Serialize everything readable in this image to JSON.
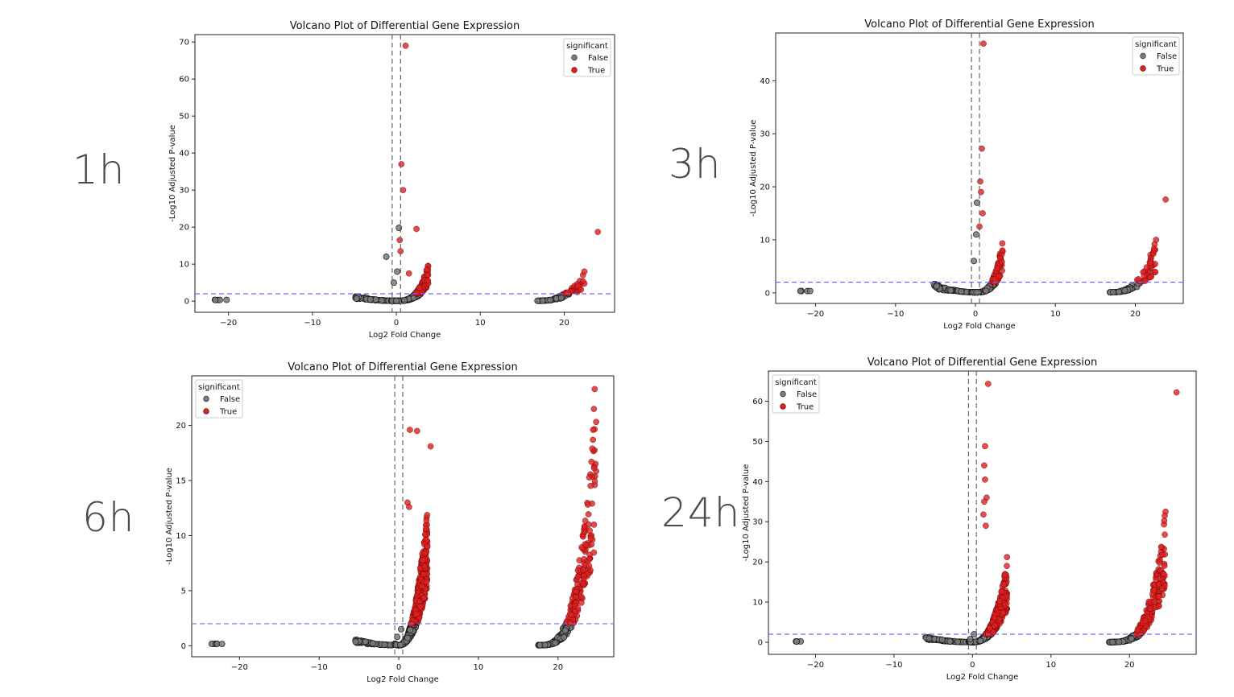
{
  "chart_data": [
    {
      "type": "scatter",
      "time_label": "1h",
      "title": "Volcano Plot of Differential Gene Expression",
      "xlabel": "Log2 Fold Change",
      "ylabel": "-Log10 Adjusted P-value",
      "xlim": [
        -24,
        26
      ],
      "ylim": [
        -3,
        72
      ],
      "xticks": [
        -20,
        -10,
        0,
        10,
        20
      ],
      "yticks": [
        0,
        10,
        20,
        30,
        40,
        50,
        60,
        70
      ],
      "fc_thresholds": [
        -0.5,
        0.5
      ],
      "p_threshold": 2,
      "legend": {
        "title": "significant",
        "entries": [
          "False",
          "True"
        ],
        "position": "top-right"
      },
      "seed": 11,
      "clusters": [
        {
          "x_range": [
            -21.8,
            -19.6
          ],
          "n": 5,
          "y_base": 0.3,
          "y_max": 0.9,
          "shape": 1
        },
        {
          "x_range": [
            -5,
            -0.6
          ],
          "n": 60,
          "y_base": 0.1,
          "y_max": 1.6,
          "shape": 2
        },
        {
          "x_range": [
            -0.6,
            3.8
          ],
          "n": 260,
          "y_base": 0.1,
          "y_max": 10,
          "shape": 3
        },
        {
          "x_range": [
            16.8,
            22.4
          ],
          "n": 80,
          "y_base": 0.1,
          "y_max": 8,
          "shape": 2.4
        }
      ],
      "false_points": [
        [
          -1.2,
          12
        ],
        [
          0.3,
          19.8
        ],
        [
          0.1,
          8
        ],
        [
          -0.3,
          5
        ]
      ],
      "true_points": [
        [
          1.1,
          69
        ],
        [
          0.6,
          37
        ],
        [
          0.8,
          30
        ],
        [
          2.4,
          19.5
        ],
        [
          0.4,
          16.5
        ],
        [
          0.5,
          13.5
        ],
        [
          24,
          18.7
        ],
        [
          22.4,
          8
        ],
        [
          1.5,
          7.5
        ]
      ]
    },
    {
      "type": "scatter",
      "time_label": "3h",
      "title": "Volcano Plot of Differential Gene Expression",
      "xlabel": "Log2 Fold Change",
      "ylabel": "-Log10 Adjusted P-value",
      "xlim": [
        -25,
        26
      ],
      "ylim": [
        -2,
        49
      ],
      "xticks": [
        -20,
        -10,
        0,
        10,
        20
      ],
      "yticks": [
        0,
        10,
        20,
        30,
        40
      ],
      "fc_thresholds": [
        -0.5,
        0.5
      ],
      "p_threshold": 2,
      "legend": {
        "title": "significant",
        "entries": [
          "False",
          "True"
        ],
        "position": "top-right"
      },
      "seed": 23,
      "clusters": [
        {
          "x_range": [
            -22.4,
            -20
          ],
          "n": 5,
          "y_base": 0.3,
          "y_max": 0.8,
          "shape": 1
        },
        {
          "x_range": [
            -5.2,
            -0.6
          ],
          "n": 70,
          "y_base": 0.1,
          "y_max": 1.8,
          "shape": 2
        },
        {
          "x_range": [
            -0.5,
            3.4
          ],
          "n": 260,
          "y_base": 0.1,
          "y_max": 10,
          "shape": 3
        },
        {
          "x_range": [
            16.8,
            22.6
          ],
          "n": 90,
          "y_base": 0.1,
          "y_max": 10,
          "shape": 2.6
        }
      ],
      "false_points": [
        [
          0.2,
          17
        ],
        [
          0.1,
          11
        ],
        [
          -0.2,
          6
        ]
      ],
      "true_points": [
        [
          1.0,
          47
        ],
        [
          0.8,
          27.2
        ],
        [
          0.6,
          21
        ],
        [
          0.7,
          19
        ],
        [
          0.9,
          15
        ],
        [
          0.5,
          12.5
        ],
        [
          23.8,
          17.6
        ],
        [
          22.6,
          10
        ],
        [
          3.3,
          5.8
        ]
      ]
    },
    {
      "type": "scatter",
      "time_label": "6h",
      "title": "Volcano Plot of Differential Gene Expression",
      "xlabel": "Log2 Fold Change",
      "ylabel": "-Log10 Adjusted P-value",
      "xlim": [
        -26,
        27
      ],
      "ylim": [
        -1,
        24.5
      ],
      "xticks": [
        -20,
        -10,
        0,
        10,
        20
      ],
      "yticks": [
        0,
        5,
        10,
        15,
        20
      ],
      "fc_thresholds": [
        -0.5,
        0.5
      ],
      "p_threshold": 2,
      "legend": {
        "title": "significant",
        "entries": [
          "False",
          "True"
        ],
        "position": "top-left"
      },
      "seed": 37,
      "clusters": [
        {
          "x_range": [
            -23.6,
            -21.2
          ],
          "n": 6,
          "y_base": 0.15,
          "y_max": 0.5,
          "shape": 1
        },
        {
          "x_range": [
            -5.5,
            -0.6
          ],
          "n": 80,
          "y_base": 0.05,
          "y_max": 0.6,
          "shape": 2
        },
        {
          "x_range": [
            -0.5,
            3.6
          ],
          "n": 700,
          "y_base": 0.05,
          "y_max": 13,
          "shape": 2.2
        },
        {
          "x_range": [
            17.5,
            24.8
          ],
          "n": 300,
          "y_base": 0.05,
          "y_max": 23.5,
          "shape": 3.2
        }
      ],
      "false_points": [
        [
          0.3,
          1.5
        ],
        [
          -0.2,
          0.8
        ]
      ],
      "true_points": [
        [
          1.4,
          19.6
        ],
        [
          2.3,
          19.5
        ],
        [
          4.0,
          18.1
        ],
        [
          1.1,
          13
        ],
        [
          1.3,
          12.6
        ],
        [
          24.6,
          23.3
        ],
        [
          24.5,
          21.5
        ],
        [
          24.4,
          19.6
        ],
        [
          24.3,
          17.9
        ],
        [
          24.2,
          16.7
        ],
        [
          3.6,
          9
        ]
      ]
    },
    {
      "type": "scatter",
      "time_label": "24h",
      "title": "Volcano Plot of Differential Gene Expression",
      "xlabel": "Log2 Fold Change",
      "ylabel": "-Log10 Adjusted P-value",
      "xlim": [
        -26,
        28.5
      ],
      "ylim": [
        -3,
        67.5
      ],
      "xticks": [
        -20,
        -10,
        0,
        10,
        20
      ],
      "yticks": [
        0,
        10,
        20,
        30,
        40,
        50,
        60
      ],
      "fc_thresholds": [
        -0.5,
        0.5
      ],
      "p_threshold": 2,
      "legend": {
        "title": "significant",
        "entries": [
          "False",
          "True"
        ],
        "position": "top-left"
      },
      "seed": 53,
      "clusters": [
        {
          "x_range": [
            -22.6,
            -21.6
          ],
          "n": 4,
          "y_base": 0.2,
          "y_max": 0.5,
          "shape": 1
        },
        {
          "x_range": [
            -6,
            -0.6
          ],
          "n": 80,
          "y_base": 0.05,
          "y_max": 1.5,
          "shape": 2
        },
        {
          "x_range": [
            -0.5,
            4.4
          ],
          "n": 650,
          "y_base": 0.05,
          "y_max": 20,
          "shape": 2.4
        },
        {
          "x_range": [
            17.4,
            24.6
          ],
          "n": 300,
          "y_base": 0.05,
          "y_max": 33,
          "shape": 3.4
        }
      ],
      "false_points": [
        [
          0.2,
          2
        ],
        [
          -0.3,
          0.8
        ]
      ],
      "true_points": [
        [
          2.0,
          64.3
        ],
        [
          1.6,
          48.8
        ],
        [
          1.5,
          44
        ],
        [
          1.6,
          40.5
        ],
        [
          1.8,
          36
        ],
        [
          1.5,
          35
        ],
        [
          1.4,
          31.8
        ],
        [
          26.0,
          62.2
        ],
        [
          24.6,
          32.5
        ],
        [
          24.5,
          31.5
        ],
        [
          4.4,
          21.2
        ],
        [
          1.7,
          29
        ]
      ]
    }
  ]
}
